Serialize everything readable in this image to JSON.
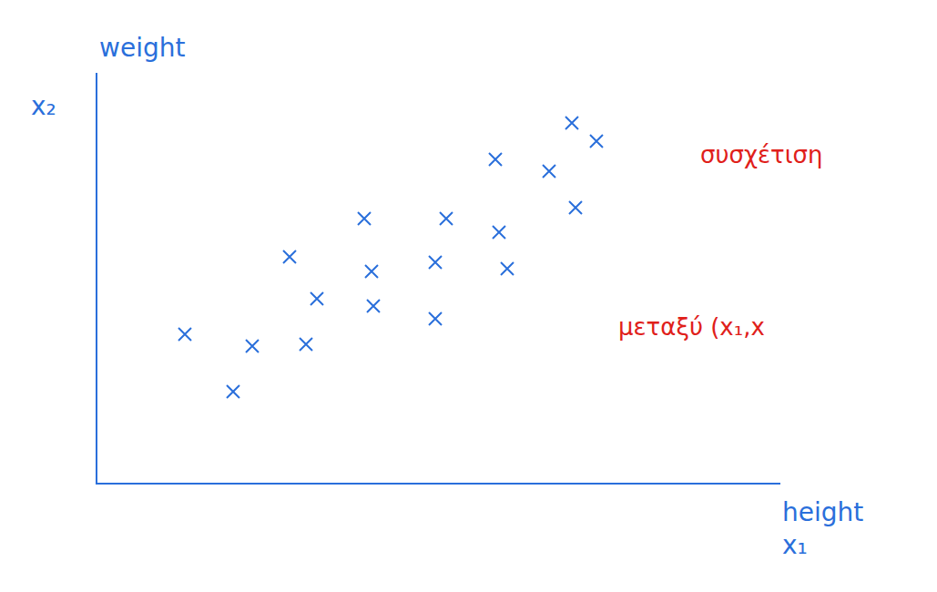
{
  "chart_data": {
    "type": "scatter",
    "xlabel": "height",
    "ylabel": "weight",
    "x_symbol": "x₁",
    "y_symbol": "x₂",
    "annotations": [
      {
        "text": "συσχέτιση",
        "color": "#e0201a"
      },
      {
        "text": "μεταξύ (x₁,x",
        "color": "#e0201a"
      }
    ],
    "x": [
      9.6,
      17.0,
      22.9,
      14.9,
      24.1,
      21.1,
      29.3,
      30.1,
      30.3,
      37.1,
      38.3,
      37.1,
      44.1,
      45.0,
      43.7,
      49.6,
      52.5,
      52.1,
      54.8
    ],
    "values": [
      16.3,
      15.0,
      15.2,
      10.0,
      20.2,
      24.8,
      29.0,
      23.2,
      19.4,
      18.0,
      29.0,
      24.2,
      27.5,
      23.5,
      35.5,
      34.2,
      30.2,
      39.5,
      37.5
    ],
    "color": "#2a6fdb",
    "marker": "x",
    "xlim": [
      0,
      75
    ],
    "ylim": [
      0,
      45
    ],
    "tick_labels": false,
    "grid": false
  }
}
